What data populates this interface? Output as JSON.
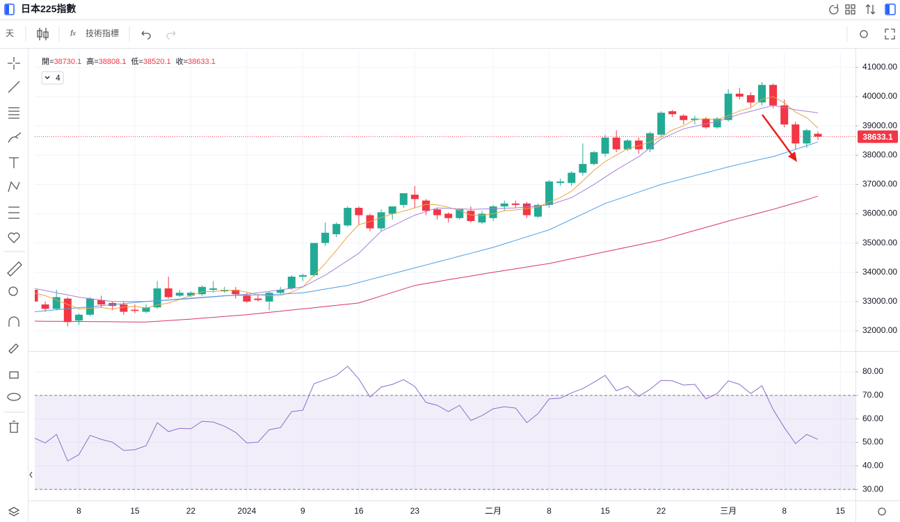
{
  "header": {
    "title": "日本225指數"
  },
  "toolbar": {
    "interval": "天",
    "indicators": "技術指標"
  },
  "indicator_count": "4",
  "ohlc_labels": [
    "開=",
    "高=",
    "低=",
    "收="
  ],
  "chart_data": [
    {
      "type": "candlestick",
      "categories": [
        null,
        null,
        null,
        null,
        "8",
        null,
        null,
        null,
        null,
        "15",
        null,
        null,
        null,
        null,
        "22",
        null,
        null,
        null,
        null,
        "2024",
        null,
        null,
        null,
        null,
        "9",
        null,
        null,
        null,
        null,
        "16",
        null,
        null,
        null,
        null,
        "23",
        null,
        null,
        null,
        null,
        null,
        null,
        "二月",
        null,
        null,
        null,
        null,
        "8",
        null,
        null,
        null,
        null,
        "15",
        null,
        null,
        null,
        null,
        "22",
        null,
        null,
        null,
        null,
        null,
        "三月",
        null,
        null,
        null,
        null,
        "8",
        null,
        null,
        null,
        null,
        "15",
        null
      ],
      "open": [
        33400,
        32900,
        32750,
        33100,
        32350,
        32550,
        33050,
        32950,
        32900,
        32720,
        32650,
        32800,
        33450,
        33200,
        33200,
        33250,
        33400,
        33350,
        33400,
        33200,
        33100,
        33000,
        33300,
        33450,
        33850,
        33900,
        35000,
        35300,
        35600,
        36200,
        35950,
        35500,
        36000,
        36300,
        36650,
        36450,
        36150,
        36000,
        35850,
        36100,
        35700,
        35850,
        36250,
        36350,
        36350,
        35900,
        36300,
        37050,
        37050,
        37400,
        37700,
        38050,
        38600,
        38200,
        38500,
        38200,
        38700,
        39500,
        39350,
        39200,
        39250,
        38950,
        39200,
        40100,
        40050,
        39800,
        40400,
        39700,
        39050,
        38400,
        38730.1,
        null,
        null,
        null
      ],
      "high": [
        33450,
        33000,
        33400,
        33150,
        32600,
        33150,
        33200,
        33000,
        33000,
        32900,
        32900,
        33700,
        33850,
        33400,
        33350,
        33550,
        33700,
        33500,
        33500,
        33300,
        33250,
        33350,
        33500,
        33900,
        33950,
        35000,
        35700,
        35700,
        36250,
        36250,
        36000,
        36150,
        36250,
        36700,
        36950,
        36500,
        36200,
        36050,
        36150,
        36250,
        36100,
        36300,
        36450,
        36450,
        36400,
        36350,
        37150,
        37200,
        37450,
        38400,
        38150,
        38700,
        38850,
        38550,
        38600,
        38800,
        39500,
        39550,
        39400,
        39350,
        39300,
        39300,
        40250,
        40300,
        40150,
        40500,
        40450,
        39900,
        39150,
        38900,
        38808.1,
        null,
        null,
        null
      ],
      "low": [
        32950,
        32650,
        32700,
        32150,
        32200,
        32500,
        32800,
        32700,
        32550,
        32600,
        32600,
        32750,
        33100,
        33150,
        33150,
        33200,
        33300,
        33300,
        33100,
        32950,
        33000,
        32700,
        33250,
        33400,
        33700,
        33850,
        34900,
        35200,
        35550,
        35600,
        35400,
        35400,
        35800,
        36200,
        36200,
        35950,
        35800,
        35700,
        35800,
        35700,
        35650,
        35750,
        36100,
        36200,
        35850,
        35850,
        36200,
        36950,
        36950,
        37300,
        37650,
        37950,
        38100,
        38150,
        38050,
        38100,
        38600,
        39300,
        39050,
        39050,
        38900,
        38900,
        39150,
        39900,
        39650,
        39700,
        39600,
        38950,
        38200,
        38250,
        38520.1,
        null,
        null,
        null
      ],
      "close": [
        33000,
        32750,
        33150,
        32300,
        32550,
        33100,
        32900,
        32850,
        32650,
        32680,
        32800,
        33450,
        33150,
        33300,
        33300,
        33500,
        33450,
        33400,
        33250,
        33000,
        33050,
        33300,
        33400,
        33850,
        33900,
        35000,
        35350,
        35650,
        36200,
        35950,
        35500,
        36050,
        36250,
        36700,
        36500,
        36100,
        35950,
        35850,
        36150,
        35750,
        36000,
        36250,
        36350,
        36300,
        35950,
        36300,
        37100,
        37100,
        37400,
        37700,
        38100,
        38600,
        38200,
        38500,
        38200,
        38750,
        39450,
        39400,
        39200,
        39250,
        38950,
        39250,
        40100,
        40000,
        39800,
        40400,
        39700,
        39050,
        38400,
        38850,
        38633.1,
        null,
        null,
        null
      ],
      "up_color": "#22ab94",
      "down_color": "#f23645",
      "series": [
        {
          "color": "#e9a441",
          "values": [
            33300,
            33200,
            33050,
            32900,
            32750,
            32770,
            32800,
            32740,
            32810,
            32836,
            32776,
            32886,
            32946,
            33076,
            33200,
            33340,
            33340,
            33390,
            33380,
            33320,
            33230,
            33200,
            33200,
            33320,
            33500,
            33890,
            34300,
            34750,
            35220,
            35630,
            35730,
            35870,
            35990,
            36090,
            36200,
            36320,
            36300,
            36220,
            36110,
            35960,
            35940,
            36000,
            36100,
            36130,
            36170,
            36230,
            36400,
            36550,
            36770,
            37120,
            37480,
            37780,
            38000,
            38220,
            38320,
            38450,
            38620,
            38860,
            39000,
            39210,
            39250,
            39210,
            39350,
            39510,
            39620,
            39910,
            40000,
            39790,
            39470,
            39280,
            38927,
            null,
            null,
            null
          ]
        },
        {
          "color": "#a77fd6",
          "values": [
            33450,
            33375,
            33300,
            33225,
            33150,
            33100,
            33050,
            33000,
            33000,
            33000,
            33000,
            33025,
            33050,
            33075,
            33100,
            33130,
            33160,
            33190,
            33220,
            33250,
            33300,
            33350,
            33400,
            33450,
            33500,
            33700,
            33900,
            34150,
            34400,
            34650,
            35025,
            35400,
            35580,
            35770,
            35950,
            36075,
            36200,
            36180,
            36170,
            36150,
            36160,
            36170,
            36190,
            36200,
            36230,
            36270,
            36300,
            36425,
            36550,
            36775,
            37000,
            37250,
            37500,
            37725,
            37950,
            38250,
            38550,
            38725,
            38900,
            38985,
            39070,
            39150,
            39275,
            39400,
            39500,
            39600,
            39700,
            39625,
            39550,
            39500,
            39450,
            null,
            null,
            null
          ]
        },
        {
          "color": "#4a9ee6",
          "values": [
            32650,
            32685,
            32720,
            32755,
            32790,
            32825,
            32860,
            32895,
            32930,
            32965,
            33000,
            33030,
            33055,
            33085,
            33115,
            33145,
            33170,
            33200,
            33210,
            33220,
            33230,
            33240,
            33250,
            33275,
            33300,
            33360,
            33425,
            33490,
            33550,
            33650,
            33750,
            33850,
            33950,
            34050,
            34150,
            34250,
            34350,
            34450,
            34550,
            34650,
            34750,
            34850,
            34970,
            35090,
            35210,
            35330,
            35450,
            35630,
            35810,
            35990,
            36170,
            36350,
            36480,
            36610,
            36740,
            36870,
            37000,
            37100,
            37200,
            37300,
            37400,
            37500,
            37600,
            37690,
            37780,
            37870,
            37950,
            38075,
            38200,
            38325,
            38450,
            null,
            null,
            null
          ]
        },
        {
          "color": "#d6336c",
          "values": [
            32330,
            32327,
            32324,
            32321,
            32318,
            32315,
            32312,
            32309,
            32306,
            32303,
            32300,
            32325,
            32350,
            32375,
            32400,
            32430,
            32460,
            32490,
            32520,
            32550,
            32590,
            32630,
            32670,
            32710,
            32750,
            32790,
            32830,
            32870,
            32910,
            32950,
            33070,
            33190,
            33310,
            33430,
            33550,
            33615,
            33680,
            33745,
            33810,
            33870,
            33935,
            34000,
            34060,
            34120,
            34180,
            34240,
            34300,
            34380,
            34460,
            34540,
            34620,
            34700,
            34780,
            34860,
            34940,
            35020,
            35100,
            35210,
            35320,
            35430,
            35535,
            35640,
            35750,
            35850,
            35950,
            36050,
            36150,
            36260,
            36370,
            36480,
            36600,
            null,
            null,
            null
          ]
        }
      ],
      "ylim": [
        31310,
        41520
      ],
      "yticks": [
        {
          "value": 32000,
          "label": "32000.00"
        },
        {
          "value": 33000,
          "label": "33000.00"
        },
        {
          "value": 34000,
          "label": "34000.00"
        },
        {
          "value": 35000,
          "label": "35000.00"
        },
        {
          "value": 36000,
          "label": "36000.00"
        },
        {
          "value": 37000,
          "label": "37000.00"
        },
        {
          "value": 38000,
          "label": "38000.00"
        },
        {
          "value": 39000,
          "label": "39000.00"
        },
        {
          "value": 40000,
          "label": "40000.00"
        },
        {
          "value": 41000,
          "label": "41000.00"
        }
      ],
      "grid": true
    },
    {
      "type": "line",
      "color": "#8a6cc9",
      "values": [
        51.9,
        49.8,
        53.4,
        42.1,
        44.8,
        53,
        51.3,
        50.1,
        46.6,
        46.9,
        48.6,
        58.4,
        54.6,
        56,
        55.8,
        59,
        58.7,
        56.9,
        54.3,
        49.8,
        50.1,
        55.4,
        56.3,
        63.1,
        63.7,
        75,
        76.7,
        78.5,
        82.4,
        77,
        69.3,
        73.5,
        74.7,
        76.7,
        73.8,
        67,
        65.8,
        63.1,
        65.8,
        59.3,
        61.4,
        64.3,
        65.2,
        64.6,
        58.4,
        62.2,
        68.5,
        68.8,
        71.1,
        72.9,
        75.6,
        78.5,
        72,
        73.8,
        69.6,
        72.6,
        76.4,
        76.2,
        74.4,
        74.7,
        68.5,
        70.8,
        76.2,
        74.7,
        70.8,
        74.1,
        64,
        56.3,
        49.5,
        53.4,
        51.3,
        null,
        null,
        null
      ],
      "band": [
        30,
        70
      ],
      "band_color": "#7e57c2",
      "ylim": [
        25.3,
        88.3
      ],
      "yticks": [
        {
          "value": 30,
          "label": "30.00"
        },
        {
          "value": 40,
          "label": "40.00"
        },
        {
          "value": 50,
          "label": "50.00"
        },
        {
          "value": 60,
          "label": "60.00"
        },
        {
          "value": 70,
          "label": "70.00"
        },
        {
          "value": 80,
          "label": "80.00"
        }
      ],
      "grid": true
    }
  ]
}
